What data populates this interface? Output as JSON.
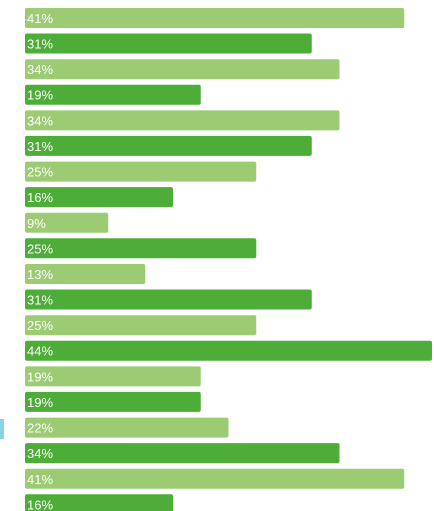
{
  "colors": {
    "light_series": "#9ccb74",
    "dark_series": "#4ead38",
    "accent": "#8ed3e0"
  },
  "chart_data": {
    "type": "bar",
    "orientation": "horizontal",
    "grid": false,
    "categories": [
      "",
      "",
      "",
      "",
      "",
      "",
      "",
      "",
      "",
      ""
    ],
    "series": [
      {
        "values": [
          41,
          34,
          34,
          25,
          9,
          13,
          25,
          19,
          22,
          41
        ],
        "color": "#9ccb74"
      },
      {
        "values": [
          31,
          19,
          31,
          16,
          25,
          31,
          44,
          19,
          34,
          16
        ],
        "color": "#4ead38"
      }
    ],
    "value_suffix": "%",
    "xlim": [
      0,
      44
    ]
  }
}
